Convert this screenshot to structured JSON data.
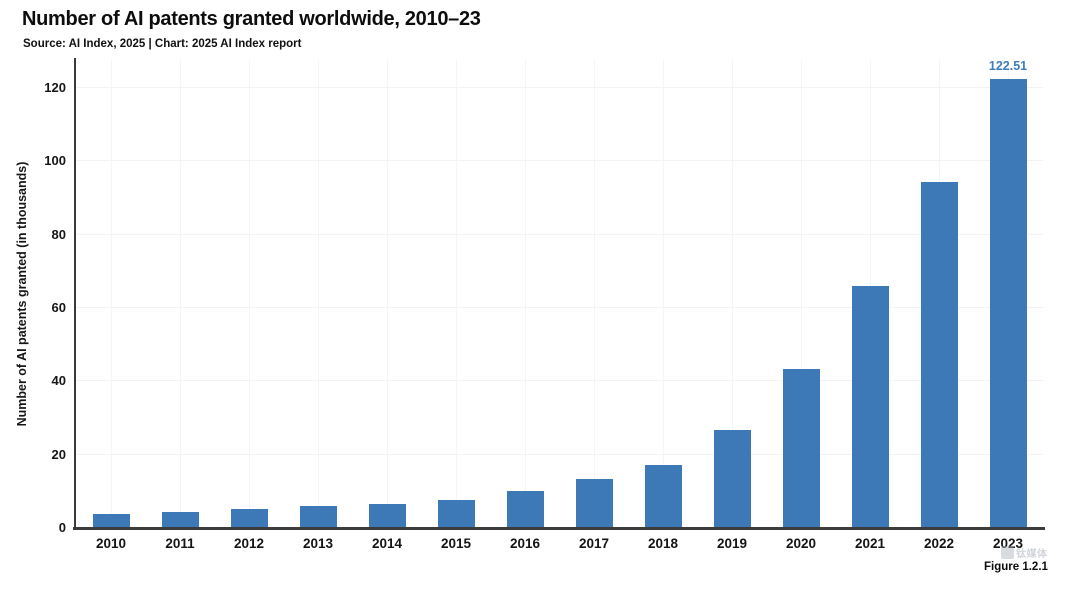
{
  "header": {
    "title": "Number of AI patents granted worldwide, 2010–23",
    "subtitle": "Source: AI Index, 2025 | Chart: 2025 AI Index report"
  },
  "footer": {
    "figure_label": "Figure 1.2.1",
    "watermark": "钛媒体"
  },
  "colors": {
    "bar": "#3d79b6",
    "value_label": "#3f7cb9",
    "axis": "#3b3b3b",
    "grid": "#f3f3f3",
    "text": "#141414"
  },
  "chart_data": {
    "type": "bar",
    "title": "Number of AI patents granted worldwide, 2010–23",
    "source_note": "Source: AI Index, 2025 | Chart: 2025 AI Index report",
    "categories": [
      "2010",
      "2011",
      "2012",
      "2013",
      "2014",
      "2015",
      "2016",
      "2017",
      "2018",
      "2019",
      "2020",
      "2021",
      "2022",
      "2023"
    ],
    "values": [
      3.8,
      4.4,
      5.1,
      6.0,
      6.6,
      7.6,
      10.0,
      13.3,
      17.2,
      26.7,
      43.3,
      65.9,
      94.5,
      122.51
    ],
    "bar_labels": [
      "",
      "",
      "",
      "",
      "",
      "",
      "",
      "",
      "",
      "",
      "",
      "",
      "",
      "122.51"
    ],
    "xlabel": "",
    "ylabel": "Number of AI patents granted (in thousands)",
    "yticks": [
      0,
      20,
      40,
      60,
      80,
      100,
      120
    ],
    "ylim": [
      0,
      120
    ],
    "grid": true,
    "legend": "none"
  }
}
